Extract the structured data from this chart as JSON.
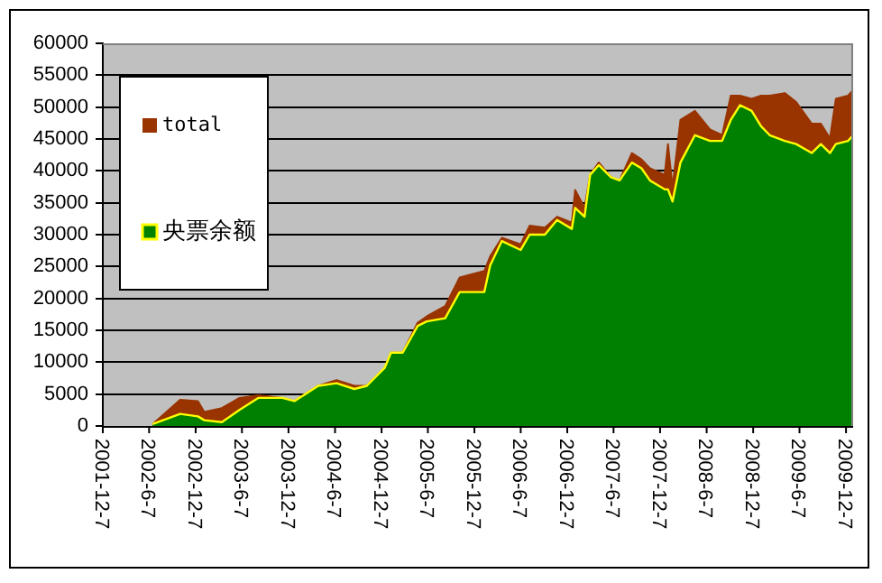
{
  "chart_data": {
    "type": "area",
    "xlim": [
      "2001-12-07",
      "2010-01-04"
    ],
    "xticks": [
      {
        "value": "2001-12-07",
        "label": "2001-12-7"
      },
      {
        "value": "2002-06-07",
        "label": "2002-6-7"
      },
      {
        "value": "2002-12-07",
        "label": "2002-12-7"
      },
      {
        "value": "2003-06-07",
        "label": "2003-6-7"
      },
      {
        "value": "2003-12-07",
        "label": "2003-12-7"
      },
      {
        "value": "2004-06-07",
        "label": "2004-6-7"
      },
      {
        "value": "2004-12-07",
        "label": "2004-12-7"
      },
      {
        "value": "2005-06-07",
        "label": "2005-6-7"
      },
      {
        "value": "2005-12-07",
        "label": "2005-12-7"
      },
      {
        "value": "2006-06-07",
        "label": "2006-6-7"
      },
      {
        "value": "2006-12-07",
        "label": "2006-12-7"
      },
      {
        "value": "2007-06-07",
        "label": "2007-6-7"
      },
      {
        "value": "2007-12-07",
        "label": "2007-12-7"
      },
      {
        "value": "2008-06-07",
        "label": "2008-6-7"
      },
      {
        "value": "2008-12-07",
        "label": "2008-12-7"
      },
      {
        "value": "2009-06-07",
        "label": "2009-6-7"
      },
      {
        "value": "2009-12-07",
        "label": "2009-12-7"
      }
    ],
    "ylim": [
      0,
      60000
    ],
    "yticks": [
      0,
      5000,
      10000,
      15000,
      20000,
      25000,
      30000,
      35000,
      40000,
      45000,
      50000,
      55000,
      60000
    ],
    "grid": "y",
    "legend": "top left",
    "marker": "none",
    "x": [
      "2002-06-21",
      "2002-10-07",
      "2002-12-16",
      "2003-01-10",
      "2003-03-20",
      "2003-05-28",
      "2003-08-10",
      "2003-11-13",
      "2003-12-30",
      "2004-04-02",
      "2004-06-13",
      "2004-08-22",
      "2004-10-10",
      "2004-12-19",
      "2005-01-13",
      "2005-02-28",
      "2005-04-28",
      "2005-06-03",
      "2005-08-14",
      "2005-10-10",
      "2006-01-15",
      "2006-02-07",
      "2006-03-25",
      "2006-06-07",
      "2006-07-12",
      "2006-09-10",
      "2006-10-28",
      "2006-12-25",
      "2007-01-07",
      "2007-02-13",
      "2007-03-07",
      "2007-04-10",
      "2007-05-28",
      "2007-07-01",
      "2007-08-18",
      "2007-09-25",
      "2007-10-28",
      "2007-12-25",
      "2008-01-07",
      "2008-01-25",
      "2008-02-25",
      "2008-04-22",
      "2008-06-20",
      "2008-08-07",
      "2008-09-10",
      "2008-10-16",
      "2008-12-01",
      "2009-01-07",
      "2009-02-10",
      "2009-04-10",
      "2009-05-25",
      "2009-07-25",
      "2009-08-30",
      "2009-10-05",
      "2009-10-28",
      "2009-12-15",
      "2010-01-04"
    ],
    "series": [
      {
        "name": "total",
        "color": "#993300",
        "values": [
          300,
          4100,
          3900,
          2200,
          2800,
          4400,
          4800,
          4400,
          3900,
          6300,
          7200,
          6300,
          6300,
          9100,
          11500,
          11500,
          16200,
          17200,
          18800,
          23300,
          24300,
          26600,
          29500,
          28500,
          31400,
          31100,
          32800,
          31900,
          37000,
          34200,
          39400,
          41300,
          39000,
          38500,
          42800,
          41800,
          40400,
          39400,
          44200,
          37500,
          48000,
          49400,
          46500,
          45600,
          51800,
          51800,
          51300,
          51800,
          51800,
          52200,
          50800,
          47400,
          47400,
          45100,
          51300,
          51800,
          52700
        ]
      },
      {
        "name": "央票余额",
        "color": "#008000",
        "values": [
          300,
          1900,
          1500,
          900,
          600,
          2500,
          4400,
          4400,
          3900,
          6300,
          6700,
          5800,
          6300,
          9100,
          11500,
          11500,
          15700,
          16400,
          16900,
          21000,
          21000,
          25200,
          29000,
          27600,
          30000,
          30000,
          32300,
          30900,
          34200,
          32800,
          39400,
          40900,
          39000,
          38500,
          41300,
          40400,
          38500,
          37100,
          37100,
          35200,
          41300,
          45600,
          44700,
          44700,
          48000,
          50300,
          49400,
          47000,
          45600,
          44700,
          44200,
          42800,
          44200,
          42800,
          44200,
          44700,
          45600
        ]
      }
    ]
  }
}
